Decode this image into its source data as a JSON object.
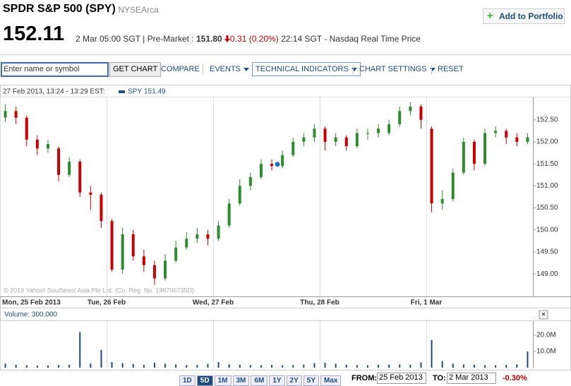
{
  "header": {
    "title": "SPDR S&P 500 (SPY)",
    "exchange": "- NYSEArca",
    "price": "152.11",
    "time": "2 Mar 05:00 SGT",
    "pre_label": "Pre-Market :",
    "pre_price": "151.80",
    "pre_change": "0.31 (0.20%)",
    "source": "22:14 SGT - Nasdaq Real Time Price",
    "portfolio": "Add to Portfolio"
  },
  "toolbar": {
    "placeholder": "Enter name or symbol",
    "get_chart": "GET CHART",
    "compare": "COMPARE",
    "events": "EVENTS",
    "indicators": "TECHNICAL INDICATORS",
    "settings": "CHART SETTINGS",
    "reset": "RESET"
  },
  "chart_data": [
    {
      "type": "candlestick",
      "info": "27 Feb 2013, 13:24 - 13:29 EST:",
      "legend": {
        "name": "SPY",
        "value": 151.49
      },
      "copyright": "© 2013 Yahoo! Southeast Asia Pte Ltd. (Co. Reg. No. 199700735D)",
      "categories": [
        "Mon, 25 Feb 2013",
        null,
        null,
        null,
        null,
        null,
        null,
        null,
        null,
        null,
        "Tue, 26 Feb",
        null,
        null,
        null,
        null,
        null,
        null,
        null,
        null,
        null,
        "Wed, 27 Feb",
        null,
        null,
        null,
        null,
        null,
        null,
        null,
        null,
        null,
        "Thu, 28 Feb",
        null,
        null,
        null,
        null,
        null,
        null,
        null,
        null,
        null,
        "Fri, 1 Mar",
        null,
        null,
        null,
        null,
        null,
        null,
        null,
        null,
        null
      ],
      "open": [
        152.55,
        152.7,
        152.55,
        152.05,
        151.85,
        151.85,
        151.25,
        151.55,
        150.85,
        150.8,
        150.2,
        149.1,
        149.9,
        149.4,
        149.2,
        148.9,
        149.3,
        149.6,
        149.8,
        149.9,
        149.8,
        150.1,
        150.6,
        151.0,
        151.2,
        151.5,
        151.45,
        151.7,
        152.0,
        152.1,
        152.3,
        152.0,
        152.1,
        151.9,
        152.2,
        152.2,
        152.2,
        152.4,
        152.7,
        152.8,
        152.3,
        150.6,
        150.7,
        151.3,
        152.0,
        151.5,
        152.2,
        152.25,
        152.1,
        152.0
      ],
      "high": [
        152.85,
        152.8,
        152.6,
        152.15,
        152.05,
        151.9,
        151.65,
        151.6,
        151.0,
        150.85,
        150.25,
        150.05,
        150.0,
        149.55,
        149.3,
        149.45,
        149.75,
        149.95,
        150.05,
        150.0,
        150.2,
        150.7,
        151.15,
        151.3,
        151.6,
        151.6,
        151.8,
        152.1,
        152.2,
        152.4,
        152.35,
        152.2,
        152.15,
        152.3,
        152.3,
        152.4,
        152.5,
        152.8,
        152.9,
        152.85,
        152.35,
        150.9,
        151.4,
        152.1,
        152.05,
        152.3,
        152.35,
        152.3,
        152.2,
        152.2
      ],
      "low": [
        152.45,
        152.4,
        151.9,
        151.7,
        151.75,
        151.1,
        151.2,
        150.75,
        150.45,
        150.05,
        149.05,
        149.0,
        149.3,
        149.05,
        148.75,
        148.85,
        149.25,
        149.55,
        149.7,
        149.65,
        149.75,
        150.05,
        150.55,
        150.9,
        151.15,
        151.35,
        151.4,
        151.65,
        151.9,
        152.0,
        151.8,
        151.9,
        151.8,
        151.85,
        152.05,
        152.1,
        152.15,
        152.35,
        152.6,
        152.3,
        150.4,
        150.45,
        150.65,
        151.25,
        151.35,
        151.45,
        152.1,
        151.95,
        151.9,
        151.95
      ],
      "close": [
        152.7,
        152.55,
        152.05,
        151.85,
        151.95,
        151.25,
        151.55,
        150.85,
        150.8,
        150.2,
        149.1,
        149.9,
        149.4,
        149.2,
        148.9,
        149.3,
        149.6,
        149.8,
        149.9,
        149.8,
        150.1,
        150.6,
        151.0,
        151.2,
        151.5,
        151.45,
        151.7,
        152.0,
        152.1,
        152.3,
        152.0,
        152.1,
        151.9,
        152.2,
        152.2,
        152.3,
        152.4,
        152.7,
        152.8,
        152.5,
        150.6,
        150.7,
        151.3,
        152.0,
        151.5,
        152.2,
        152.25,
        152.1,
        152.0,
        152.1
      ],
      "up_color": "#2e8b2e",
      "down_color": "#cc0000",
      "grid": true,
      "ylim": [
        148.49,
        153.01
      ],
      "yticks": [
        {
          "value": 149,
          "label": "149.00"
        },
        {
          "value": 149.5,
          "label": "149.50"
        },
        {
          "value": 150,
          "label": "150.00"
        },
        {
          "value": 150.5,
          "label": "150.50"
        },
        {
          "value": 151,
          "label": "151.00"
        },
        {
          "value": 151.5,
          "label": "151.50"
        },
        {
          "value": 152,
          "label": "152.00"
        },
        {
          "value": 152.5,
          "label": "152.50"
        }
      ]
    },
    {
      "type": "bar",
      "title": "Volume: 300,000",
      "close_label": "×",
      "color": "#1d4d7e",
      "values": [
        2500000,
        1800000,
        1500000,
        1200000,
        1400000,
        1600000,
        1900000,
        22000000,
        2500000,
        11000000,
        3500000,
        2800000,
        2200000,
        1800000,
        3000000,
        2400000,
        2000000,
        1600000,
        1700000,
        2300000,
        3500000,
        2100000,
        1800000,
        1600000,
        1500000,
        1700000,
        1400000,
        1600000,
        1900000,
        2800000,
        3000000,
        2400000,
        1800000,
        1600000,
        1500000,
        1700000,
        1900000,
        2000000,
        1800000,
        3200000,
        17000000,
        4000000,
        2500000,
        2000000,
        1800000,
        1600000,
        1500000,
        1700000,
        2100000,
        10000000
      ],
      "ylim": [
        0,
        28700000
      ],
      "yticks": [
        {
          "value": 10000000,
          "label": "10.0M"
        },
        {
          "value": 20000000,
          "label": "20.0M"
        }
      ]
    }
  ],
  "range_bar": {
    "ranges": [
      "1D",
      "5D",
      "1M",
      "3M",
      "6M",
      "1Y",
      "2Y",
      "5Y",
      "Max"
    ],
    "selected_range": "5D",
    "from_label": "FROM:",
    "from": "25 Feb 2013",
    "to_label": "TO:",
    "to": "2 Mar 2013",
    "change": "-0.30%"
  }
}
